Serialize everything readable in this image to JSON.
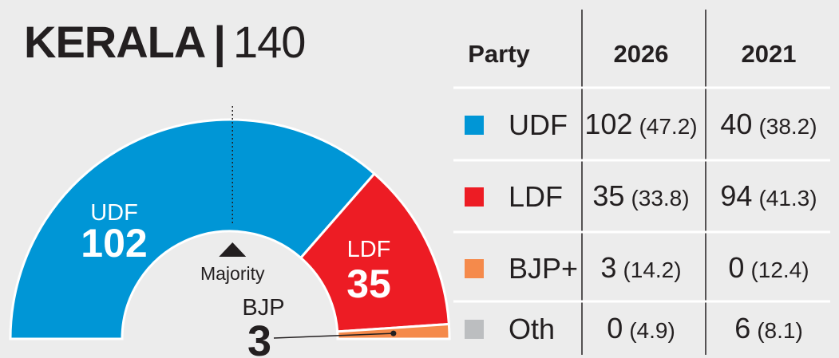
{
  "title": {
    "state": "KERALA",
    "separator": "|",
    "total_seats": "140"
  },
  "colors": {
    "background": "#ececec",
    "text": "#231f20",
    "UDF": "#0096d6",
    "LDF": "#ed1c24",
    "BJP+": "#f58a4b",
    "Oth": "#bcbec0"
  },
  "chart_data": {
    "type": "pie",
    "style": "semicircle-donut",
    "total": 140,
    "majority_label": "Majority",
    "majority_seats": 71,
    "slices": [
      {
        "label": "UDF",
        "value": 102,
        "color": "#0096d6"
      },
      {
        "label": "LDF",
        "value": 35,
        "color": "#ed1c24"
      },
      {
        "label": "BJP",
        "value": 3,
        "color": "#f58a4b"
      }
    ]
  },
  "table": {
    "headers": [
      "Party",
      "2026",
      "2021"
    ],
    "rows": [
      {
        "party": "UDF",
        "color": "#0096d6",
        "s2026": "102",
        "v2026": "(47.2)",
        "s2021": "40",
        "v2021": "(38.2)"
      },
      {
        "party": "LDF",
        "color": "#ed1c24",
        "s2026": "35",
        "v2026": "(33.8)",
        "s2021": "94",
        "v2021": "(41.3)"
      },
      {
        "party": "BJP+",
        "color": "#f58a4b",
        "s2026": "3",
        "v2026": "(14.2)",
        "s2021": "0",
        "v2021": "(12.4)"
      },
      {
        "party": "Oth",
        "color": "#bcbec0",
        "s2026": "0",
        "v2026": "(4.9)",
        "s2021": "6",
        "v2021": "(8.1)"
      }
    ]
  }
}
